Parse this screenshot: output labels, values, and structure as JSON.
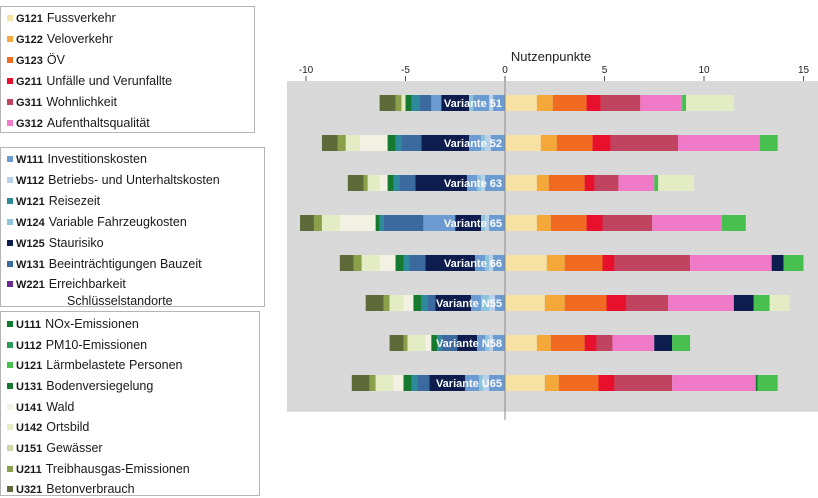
{
  "legend_groups": [
    {
      "items": [
        {
          "code": "G121",
          "label": "Fussverkehr",
          "color": "#f7e2a4"
        },
        {
          "code": "G122",
          "label": "Veloverkehr",
          "color": "#f4a83a"
        },
        {
          "code": "G123",
          "label": "ÖV",
          "color": "#f06a22"
        },
        {
          "code": "G211",
          "label": "Unfälle und Verunfallte",
          "color": "#e8112d"
        },
        {
          "code": "G311",
          "label": "Wohnlichkeit",
          "color": "#c0445f"
        },
        {
          "code": "G312",
          "label": "Aufenthaltsqualität",
          "color": "#f07ac8"
        }
      ]
    },
    {
      "items": [
        {
          "code": "W111",
          "label": "Investitionskosten",
          "color": "#6c9bd2"
        },
        {
          "code": "W112",
          "label": "Betriebs- und Unterhaltskosten",
          "color": "#b8d0ea"
        },
        {
          "code": "W121",
          "label": "Reisezeit",
          "color": "#2e8a9a"
        },
        {
          "code": "W124",
          "label": "Variable Fahrzeugkosten",
          "color": "#8fc3d9"
        },
        {
          "code": "W125",
          "label": "Staurisiko",
          "color": "#0d1d4f"
        },
        {
          "code": "W131",
          "label": "Beeinträchtigungen Bauzeit",
          "color": "#3a6a9e"
        },
        {
          "code": "W221",
          "label": "Erreichbarkeit",
          "label2": "Schlüsselstandorte",
          "color": "#6a2a8f"
        }
      ]
    },
    {
      "items": [
        {
          "code": "U111",
          "label": "NOx-Emissionen",
          "color": "#0f7a2a"
        },
        {
          "code": "U112",
          "label": "PM10-Emissionen",
          "color": "#2c9a5a"
        },
        {
          "code": "U121",
          "label": "Lärmbelastete Personen",
          "color": "#48c050"
        },
        {
          "code": "U131",
          "label": "Bodenversiegelung",
          "color": "#157a30"
        },
        {
          "code": "U141",
          "label": "Wald",
          "color": "#f3f1e4"
        },
        {
          "code": "U142",
          "label": "Ortsbild",
          "color": "#e4ecc4"
        },
        {
          "code": "U151",
          "label": "Gewässer",
          "color": "#c9d8a4"
        },
        {
          "code": "U211",
          "label": "Treibhausgas-Emissionen",
          "color": "#8aa04a"
        },
        {
          "code": "U321",
          "label": "Betonverbrauch",
          "color": "#5e6a3a"
        }
      ]
    }
  ],
  "chart_data": {
    "type": "bar",
    "orientation": "horizontal-stacked",
    "title": "Nutzenpunkte",
    "xlim": [
      -10,
      15.5
    ],
    "xticks": [
      -10,
      -5,
      0,
      5,
      10,
      15
    ],
    "grid": false,
    "background": "#d9d9d9",
    "category_label_color": "#6c9bd2",
    "categories": [
      "Variante 51",
      "Variante 52",
      "Variante 63",
      "Variante 65",
      "Variante 66",
      "Variante N55",
      "Variante N58",
      "Variante U65"
    ],
    "variants": [
      {
        "name": "Variante 51",
        "neg": [
          [
            "#5e6a3a",
            0.8
          ],
          [
            "#8aa04a",
            0.3
          ],
          [
            "#e4ecc4",
            0.2
          ],
          [
            "#157a30",
            0.3
          ],
          [
            "#2e8a9a",
            0.4
          ],
          [
            "#3a6a9e",
            0.6
          ],
          [
            "#6c9bd2",
            0.5
          ],
          [
            "#0d1d4f",
            1.4
          ],
          [
            "#8fc3d9",
            0.2
          ],
          [
            "#6c9bd2",
            0.8
          ],
          [
            "#b8d0ea",
            0.2
          ],
          [
            "#6c9bd2",
            0.6
          ]
        ],
        "pos": [
          [
            "#f7e2a4",
            1.6
          ],
          [
            "#f4a83a",
            0.8
          ],
          [
            "#f06a22",
            1.7
          ],
          [
            "#e8112d",
            0.7
          ],
          [
            "#c0445f",
            2.0
          ],
          [
            "#f07ac8",
            2.1
          ],
          [
            "#48c050",
            0.2
          ],
          [
            "#e4ecc4",
            2.4
          ]
        ]
      },
      {
        "name": "Variante 52",
        "neg": [
          [
            "#5e6a3a",
            0.8
          ],
          [
            "#8aa04a",
            0.4
          ],
          [
            "#e4ecc4",
            0.7
          ],
          [
            "#f3f1e4",
            1.4
          ],
          [
            "#157a30",
            0.4
          ],
          [
            "#2e8a9a",
            0.3
          ],
          [
            "#3a6a9e",
            1.0
          ],
          [
            "#0d1d4f",
            2.4
          ],
          [
            "#6c9bd2",
            0.6
          ],
          [
            "#8fc3d9",
            0.2
          ],
          [
            "#b8d0ea",
            0.3
          ],
          [
            "#6c9bd2",
            0.7
          ]
        ],
        "pos": [
          [
            "#f7e2a4",
            1.8
          ],
          [
            "#f4a83a",
            0.8
          ],
          [
            "#f06a22",
            1.8
          ],
          [
            "#e8112d",
            0.9
          ],
          [
            "#c0445f",
            3.4
          ],
          [
            "#f07ac8",
            4.1
          ],
          [
            "#48c050",
            0.9
          ]
        ]
      },
      {
        "name": "Variante 63",
        "neg": [
          [
            "#5e6a3a",
            0.8
          ],
          [
            "#8aa04a",
            0.2
          ],
          [
            "#e4ecc4",
            0.6
          ],
          [
            "#f3f1e4",
            0.4
          ],
          [
            "#157a30",
            0.3
          ],
          [
            "#2e8a9a",
            0.3
          ],
          [
            "#3a6a9e",
            0.8
          ],
          [
            "#0d1d4f",
            2.6
          ],
          [
            "#6c9bd2",
            0.5
          ],
          [
            "#8fc3d9",
            0.2
          ],
          [
            "#b8d0ea",
            0.2
          ],
          [
            "#6c9bd2",
            1.0
          ]
        ],
        "pos": [
          [
            "#f7e2a4",
            1.6
          ],
          [
            "#f4a83a",
            0.6
          ],
          [
            "#f06a22",
            1.8
          ],
          [
            "#e8112d",
            0.5
          ],
          [
            "#c0445f",
            1.2
          ],
          [
            "#f07ac8",
            1.8
          ],
          [
            "#48c050",
            0.2
          ],
          [
            "#e4ecc4",
            1.8
          ]
        ]
      },
      {
        "name": "Variante 65",
        "neg": [
          [
            "#5e6a3a",
            0.7
          ],
          [
            "#8aa04a",
            0.4
          ],
          [
            "#e4ecc4",
            0.9
          ],
          [
            "#f3f1e4",
            1.8
          ],
          [
            "#157a30",
            0.2
          ],
          [
            "#2e8a9a",
            0.2
          ],
          [
            "#3a6a9e",
            2.0
          ],
          [
            "#6c9bd2",
            1.6
          ],
          [
            "#0d1d4f",
            1.3
          ],
          [
            "#8fc3d9",
            0.2
          ],
          [
            "#b8d0ea",
            0.2
          ],
          [
            "#6c9bd2",
            0.8
          ]
        ],
        "pos": [
          [
            "#f7e2a4",
            1.6
          ],
          [
            "#f4a83a",
            0.7
          ],
          [
            "#f06a22",
            1.8
          ],
          [
            "#e8112d",
            0.8
          ],
          [
            "#c0445f",
            2.5
          ],
          [
            "#f07ac8",
            3.5
          ],
          [
            "#48c050",
            1.2
          ]
        ]
      },
      {
        "name": "Variante 66",
        "neg": [
          [
            "#5e6a3a",
            0.7
          ],
          [
            "#8aa04a",
            0.4
          ],
          [
            "#e4ecc4",
            0.9
          ],
          [
            "#f3f1e4",
            0.8
          ],
          [
            "#157a30",
            0.4
          ],
          [
            "#2e8a9a",
            0.3
          ],
          [
            "#3a6a9e",
            0.8
          ],
          [
            "#0d1d4f",
            2.5
          ],
          [
            "#6c9bd2",
            0.5
          ],
          [
            "#8fc3d9",
            0.2
          ],
          [
            "#b8d0ea",
            0.2
          ],
          [
            "#6c9bd2",
            0.6
          ]
        ],
        "pos": [
          [
            "#f7e2a4",
            2.1
          ],
          [
            "#f4a83a",
            0.9
          ],
          [
            "#f06a22",
            1.9
          ],
          [
            "#e8112d",
            0.6
          ],
          [
            "#c0445f",
            3.8
          ],
          [
            "#f07ac8",
            4.1
          ],
          [
            "#0d1d4f",
            0.6
          ],
          [
            "#48c050",
            1.0
          ]
        ]
      },
      {
        "name": "Variante N55",
        "neg": [
          [
            "#5e6a3a",
            0.9
          ],
          [
            "#8aa04a",
            0.3
          ],
          [
            "#e4ecc4",
            0.7
          ],
          [
            "#f3f1e4",
            0.5
          ],
          [
            "#157a30",
            0.4
          ],
          [
            "#2e8a9a",
            0.3
          ],
          [
            "#3a6a9e",
            0.4
          ],
          [
            "#0d1d4f",
            1.8
          ],
          [
            "#6c9bd2",
            0.5
          ],
          [
            "#8fc3d9",
            0.4
          ],
          [
            "#b8d0ea",
            0.3
          ],
          [
            "#6c9bd2",
            0.5
          ]
        ],
        "pos": [
          [
            "#f7e2a4",
            2.0
          ],
          [
            "#f4a83a",
            1.0
          ],
          [
            "#f06a22",
            2.1
          ],
          [
            "#e8112d",
            1.0
          ],
          [
            "#c0445f",
            2.1
          ],
          [
            "#f07ac8",
            3.3
          ],
          [
            "#0d1d4f",
            1.0
          ],
          [
            "#48c050",
            0.8
          ],
          [
            "#e4ecc4",
            1.0
          ]
        ]
      },
      {
        "name": "Variante N58",
        "neg": [
          [
            "#5e6a3a",
            0.7
          ],
          [
            "#8aa04a",
            0.2
          ],
          [
            "#e4ecc4",
            0.9
          ],
          [
            "#f3f1e4",
            0.3
          ],
          [
            "#157a30",
            0.3
          ],
          [
            "#2e8a9a",
            0.2
          ],
          [
            "#3a6a9e",
            0.8
          ],
          [
            "#0d1d4f",
            1.0
          ],
          [
            "#6c9bd2",
            0.4
          ],
          [
            "#8fc3d9",
            0.2
          ],
          [
            "#b8d0ea",
            0.2
          ],
          [
            "#6c9bd2",
            0.6
          ]
        ],
        "pos": [
          [
            "#f7e2a4",
            1.6
          ],
          [
            "#f4a83a",
            0.7
          ],
          [
            "#f06a22",
            1.7
          ],
          [
            "#e8112d",
            0.6
          ],
          [
            "#c0445f",
            0.8
          ],
          [
            "#f07ac8",
            2.1
          ],
          [
            "#0d1d4f",
            0.9
          ],
          [
            "#48c050",
            0.9
          ]
        ]
      },
      {
        "name": "Variante U65",
        "neg": [
          [
            "#5e6a3a",
            0.9
          ],
          [
            "#8aa04a",
            0.3
          ],
          [
            "#e4ecc4",
            0.9
          ],
          [
            "#f3f1e4",
            0.5
          ],
          [
            "#157a30",
            0.4
          ],
          [
            "#2e8a9a",
            0.3
          ],
          [
            "#3a6a9e",
            0.6
          ],
          [
            "#0d1d4f",
            1.8
          ],
          [
            "#6c9bd2",
            0.7
          ],
          [
            "#8fc3d9",
            0.2
          ],
          [
            "#b8d0ea",
            0.3
          ],
          [
            "#6c9bd2",
            0.8
          ]
        ],
        "pos": [
          [
            "#f7e2a4",
            2.0
          ],
          [
            "#f4a83a",
            0.7
          ],
          [
            "#f06a22",
            2.0
          ],
          [
            "#e8112d",
            0.8
          ],
          [
            "#c0445f",
            2.9
          ],
          [
            "#f07ac8",
            4.2
          ],
          [
            "#157a30",
            0.1
          ],
          [
            "#48c050",
            1.0
          ]
        ]
      }
    ]
  }
}
